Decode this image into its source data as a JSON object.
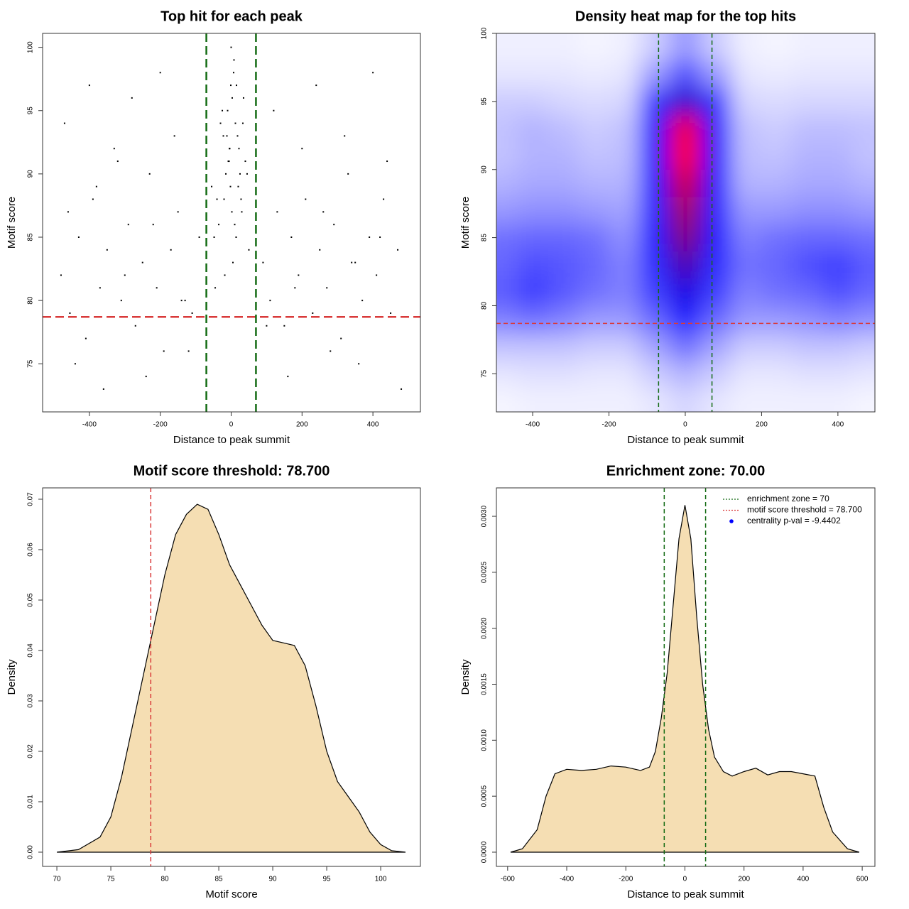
{
  "chart_data": [
    {
      "type": "scatter",
      "title": "Top hit for each peak",
      "xlabel": "Distance to peak summit",
      "ylabel": "Motif score",
      "xlim": [
        -532,
        534
      ],
      "ylim": [
        71.2,
        101.1
      ],
      "xticks": [
        -400,
        -200,
        0,
        200,
        400
      ],
      "yticks": [
        75,
        80,
        85,
        90,
        95,
        100
      ],
      "color": "#000000",
      "hlines": [
        78.7
      ],
      "hline_color": "#d93a3a",
      "vlines": [
        -70,
        70
      ],
      "vline_color": "#136b13",
      "x": [
        -5,
        12,
        -20,
        3,
        25,
        -35,
        8,
        -12,
        40,
        -48,
        15,
        -2,
        30,
        -25,
        5,
        -8,
        18,
        -40,
        50,
        0,
        -15,
        22,
        -30,
        10,
        -55,
        35,
        -4,
        7,
        -18,
        28,
        -10,
        45,
        2,
        -22,
        14,
        -6,
        33,
        -45,
        20,
        -1,
        -480,
        -455,
        -430,
        -410,
        -390,
        -370,
        -350,
        -330,
        -310,
        -290,
        -270,
        -250,
        -230,
        -210,
        -190,
        -170,
        -150,
        -130,
        -110,
        -90,
        -470,
        -440,
        -400,
        -360,
        -320,
        -280,
        -240,
        -200,
        -160,
        -120,
        90,
        110,
        130,
        150,
        170,
        190,
        210,
        230,
        250,
        270,
        290,
        310,
        330,
        350,
        370,
        390,
        410,
        430,
        450,
        470,
        120,
        160,
        200,
        240,
        280,
        320,
        360,
        400,
        440,
        480,
        -460,
        -380,
        -300,
        -220,
        -140,
        100,
        180,
        260,
        340,
        420
      ],
      "y": [
        92,
        94,
        88,
        96,
        90,
        86,
        99,
        93,
        91,
        85,
        97,
        89,
        87,
        95,
        83,
        91,
        93,
        88,
        84,
        100,
        90,
        92,
        94,
        86,
        89,
        96,
        92,
        98,
        82,
        88,
        95,
        90,
        87,
        93,
        85,
        91,
        94,
        81,
        89,
        97,
        82,
        79,
        85,
        77,
        88,
        81,
        84,
        92,
        80,
        86,
        78,
        83,
        90,
        81,
        76,
        84,
        87,
        80,
        79,
        85,
        94,
        75,
        97,
        73,
        91,
        96,
        74,
        98,
        93,
        76,
        83,
        80,
        87,
        78,
        85,
        82,
        88,
        79,
        84,
        81,
        86,
        77,
        90,
        83,
        80,
        85,
        82,
        88,
        79,
        84,
        95,
        74,
        92,
        97,
        76,
        93,
        75,
        98,
        91,
        73,
        87,
        89,
        82,
        86,
        80,
        78,
        81,
        87,
        83,
        85
      ]
    },
    {
      "type": "heatmap",
      "title": "Density heat map for the top hits",
      "xlabel": "Distance to peak summit",
      "ylabel": "Motif score",
      "xlim": [
        -495,
        497
      ],
      "ylim": [
        72.2,
        100
      ],
      "xticks": [
        -400,
        -200,
        0,
        200,
        400
      ],
      "yticks": [
        75,
        80,
        85,
        90,
        95,
        100
      ],
      "hlines": [
        78.7
      ],
      "hline_color": "#d93a3a",
      "vlines": [
        -70,
        70
      ],
      "vline_color": "#136b13",
      "x": [
        -480,
        -400,
        -320,
        -240,
        -160,
        -80,
        0,
        80,
        160,
        240,
        320,
        400,
        480
      ],
      "y": [
        73,
        75,
        77,
        79,
        81,
        83,
        85,
        87,
        89,
        91,
        93,
        95,
        97,
        99
      ],
      "z": [
        [
          0.02,
          0.03,
          0.03,
          0.03,
          0.03,
          0.05,
          0.08,
          0.05,
          0.03,
          0.03,
          0.03,
          0.03,
          0.02
        ],
        [
          0.05,
          0.06,
          0.06,
          0.05,
          0.05,
          0.1,
          0.15,
          0.1,
          0.05,
          0.05,
          0.06,
          0.06,
          0.05
        ],
        [
          0.12,
          0.12,
          0.12,
          0.1,
          0.1,
          0.18,
          0.28,
          0.18,
          0.1,
          0.1,
          0.12,
          0.12,
          0.1
        ],
        [
          0.25,
          0.28,
          0.25,
          0.2,
          0.2,
          0.3,
          0.45,
          0.3,
          0.2,
          0.2,
          0.22,
          0.25,
          0.22
        ],
        [
          0.32,
          0.38,
          0.33,
          0.28,
          0.25,
          0.38,
          0.55,
          0.38,
          0.25,
          0.28,
          0.3,
          0.35,
          0.3
        ],
        [
          0.3,
          0.35,
          0.33,
          0.3,
          0.25,
          0.42,
          0.65,
          0.42,
          0.28,
          0.3,
          0.35,
          0.38,
          0.32
        ],
        [
          0.28,
          0.3,
          0.3,
          0.28,
          0.22,
          0.45,
          0.75,
          0.45,
          0.25,
          0.28,
          0.3,
          0.3,
          0.28
        ],
        [
          0.2,
          0.22,
          0.22,
          0.2,
          0.18,
          0.45,
          0.82,
          0.45,
          0.2,
          0.2,
          0.22,
          0.22,
          0.2
        ],
        [
          0.15,
          0.17,
          0.17,
          0.15,
          0.15,
          0.47,
          0.9,
          0.47,
          0.15,
          0.15,
          0.17,
          0.17,
          0.15
        ],
        [
          0.12,
          0.15,
          0.15,
          0.12,
          0.13,
          0.5,
          1,
          0.5,
          0.13,
          0.12,
          0.15,
          0.15,
          0.12
        ],
        [
          0.12,
          0.15,
          0.13,
          0.1,
          0.12,
          0.5,
          0.98,
          0.5,
          0.12,
          0.1,
          0.13,
          0.13,
          0.12
        ],
        [
          0.1,
          0.1,
          0.08,
          0.07,
          0.08,
          0.4,
          0.6,
          0.4,
          0.08,
          0.07,
          0.08,
          0.08,
          0.08
        ],
        [
          0.05,
          0.05,
          0.05,
          0.04,
          0.05,
          0.2,
          0.35,
          0.2,
          0.05,
          0.04,
          0.05,
          0.05,
          0.05
        ],
        [
          0.03,
          0.03,
          0.03,
          0.02,
          0.03,
          0.1,
          0.2,
          0.1,
          0.03,
          0.02,
          0.03,
          0.03,
          0.03
        ]
      ],
      "colors": [
        "#ffffff",
        "#0000ff",
        "#ff0000"
      ]
    },
    {
      "type": "area",
      "title": "Motif score threshold: 78.700",
      "xlabel": "Motif score",
      "ylabel": "Density",
      "xlim": [
        68.68,
        103.68
      ],
      "ylim": [
        -0.00282,
        0.07225
      ],
      "xticks": [
        70,
        75,
        80,
        85,
        90,
        95,
        100
      ],
      "yticks": [
        {
          "value": 0,
          "label": "0.00"
        },
        {
          "value": 0.01,
          "label": "0.01"
        },
        {
          "value": 0.02,
          "label": "0.02"
        },
        {
          "value": 0.03,
          "label": "0.03"
        },
        {
          "value": 0.04,
          "label": "0.04"
        },
        {
          "value": 0.05,
          "label": "0.05"
        },
        {
          "value": 0.06,
          "label": "0.06"
        },
        {
          "value": 0.07,
          "label": "0.07"
        }
      ],
      "fill": "#f5deb3",
      "color": "#000000",
      "vlines": [
        78.7
      ],
      "vline_color": "#d93a3a",
      "x": [
        70,
        72,
        74,
        75,
        76,
        77,
        78,
        79,
        80,
        81,
        82,
        83,
        84,
        85,
        86,
        87,
        88,
        89,
        90,
        91,
        92,
        93,
        94,
        95,
        96,
        97,
        98,
        99,
        100,
        101,
        102.3
      ],
      "values": [
        0,
        0.0005,
        0.003,
        0.007,
        0.015,
        0.025,
        0.035,
        0.045,
        0.055,
        0.063,
        0.067,
        0.069,
        0.068,
        0.063,
        0.057,
        0.053,
        0.049,
        0.045,
        0.042,
        0.0415,
        0.041,
        0.037,
        0.029,
        0.02,
        0.014,
        0.011,
        0.008,
        0.004,
        0.0015,
        0.0003,
        0
      ]
    },
    {
      "type": "area",
      "title": "Enrichment zone: 70.00",
      "xlabel": "Distance to peak summit",
      "ylabel": "Density",
      "xlim": [
        -638,
        643
      ],
      "ylim": [
        -0.000127,
        0.003254
      ],
      "xticks": [
        -600,
        -400,
        -200,
        0,
        200,
        400,
        600
      ],
      "yticks": [
        {
          "value": 0,
          "label": "0.0000"
        },
        {
          "value": 0.0005,
          "label": "0.0005"
        },
        {
          "value": 0.001,
          "label": "0.0010"
        },
        {
          "value": 0.0015,
          "label": "0.0015"
        },
        {
          "value": 0.002,
          "label": "0.0020"
        },
        {
          "value": 0.0025,
          "label": "0.0025"
        },
        {
          "value": 0.003,
          "label": "0.0030"
        }
      ],
      "fill": "#f5deb3",
      "color": "#000000",
      "vlines": [
        -70,
        70
      ],
      "vline_color": "#136b13",
      "x": [
        -590,
        -550,
        -500,
        -470,
        -440,
        -400,
        -350,
        -300,
        -250,
        -200,
        -150,
        -120,
        -100,
        -80,
        -60,
        -40,
        -20,
        0,
        20,
        40,
        60,
        80,
        100,
        130,
        160,
        200,
        240,
        280,
        320,
        360,
        400,
        440,
        470,
        500,
        550,
        590
      ],
      "values": [
        0,
        3e-05,
        0.0002,
        0.0005,
        0.0007,
        0.00074,
        0.00073,
        0.00074,
        0.00077,
        0.00076,
        0.00073,
        0.00076,
        0.0009,
        0.0012,
        0.0016,
        0.0022,
        0.0028,
        0.0031,
        0.0028,
        0.0021,
        0.0015,
        0.0011,
        0.00085,
        0.00072,
        0.00068,
        0.00072,
        0.00075,
        0.00069,
        0.00072,
        0.00072,
        0.0007,
        0.00068,
        0.0004,
        0.00018,
        3e-05,
        0
      ],
      "legend": [
        {
          "label": "enrichment zone = 70",
          "color": "#136b13",
          "style": "dotted"
        },
        {
          "label": "motif score threshold = 78.700",
          "color": "#d93a3a",
          "style": "dotted"
        },
        {
          "label": "centrality p-val = -9.4402",
          "color": "#0000ff",
          "style": "dot"
        }
      ]
    }
  ]
}
